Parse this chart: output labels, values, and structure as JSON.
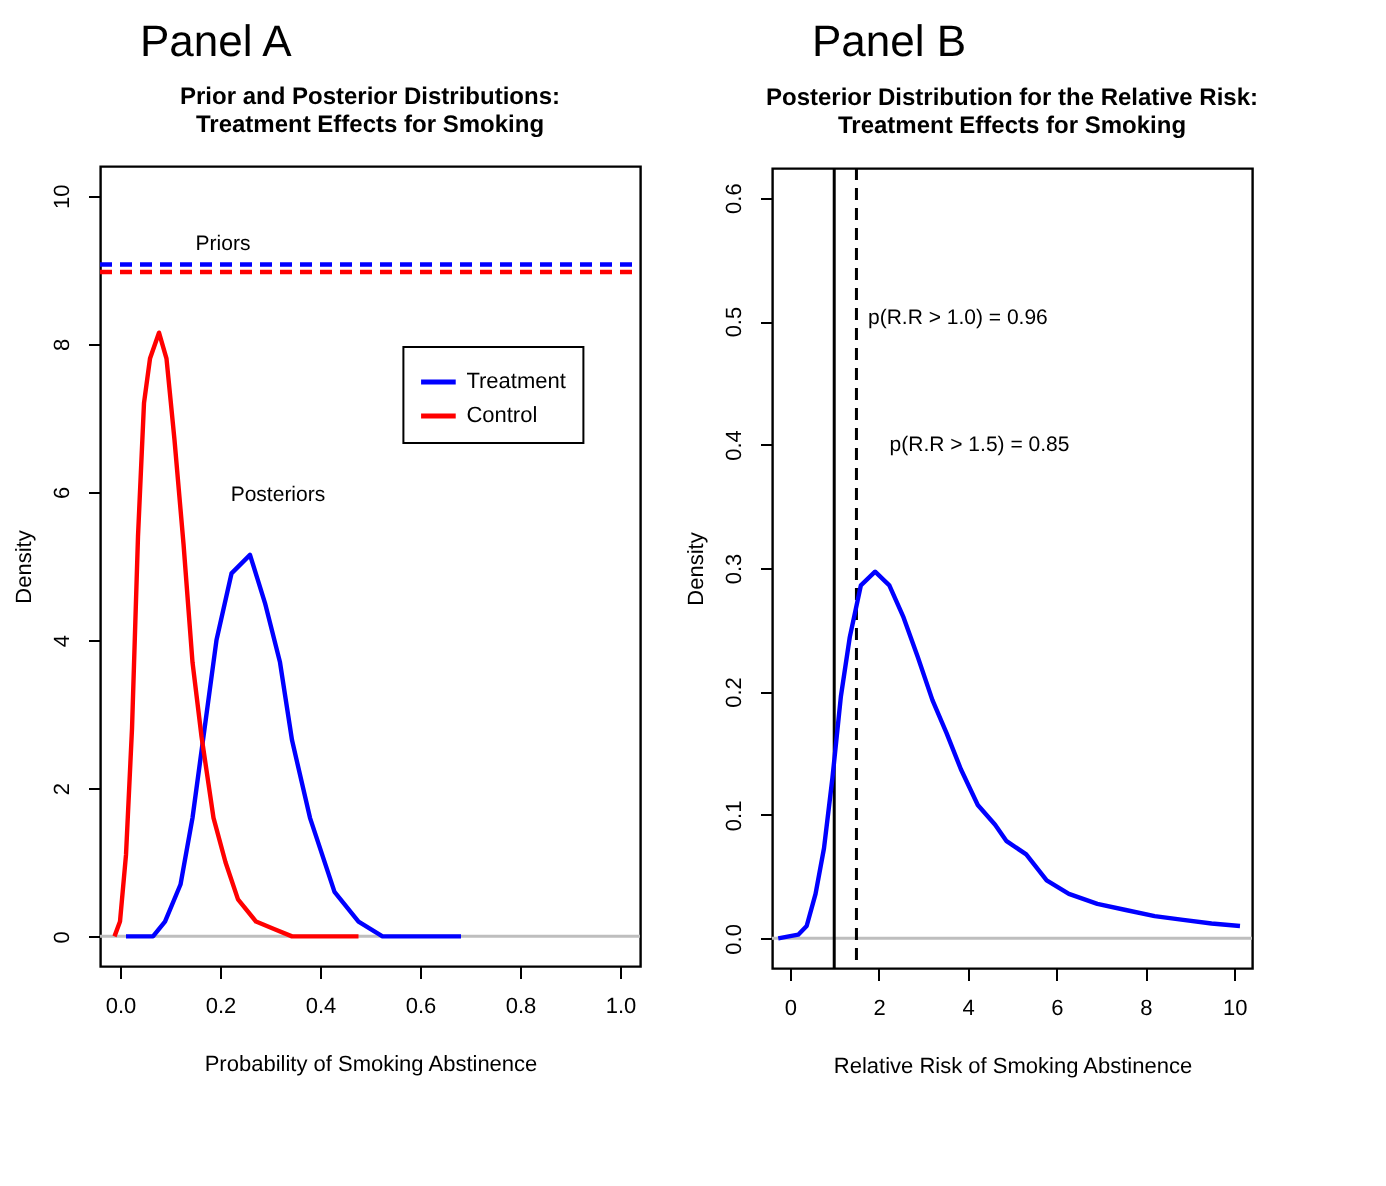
{
  "chart_data": [
    {
      "type": "line",
      "title": "Prior and Posterior Distributions:\nTreatment Effects for Smoking",
      "xlabel": "Probability of Smoking Abstinence",
      "ylabel": "Density",
      "annotations": [
        "Panel A",
        "Priors",
        "Posteriors"
      ],
      "xlim": [
        -0.04,
        1.04
      ],
      "ylim": [
        -0.4,
        10.4
      ],
      "xticks": [
        {
          "value": 0,
          "label": "0.0"
        },
        0.2,
        0.4,
        0.6,
        0.8,
        {
          "value": 1,
          "label": "1.0"
        }
      ],
      "yticks": [
        0,
        2,
        4,
        6,
        8,
        10
      ],
      "legend": "top right",
      "grid": false,
      "ref_lines": [
        {
          "axis": "y",
          "value": 0,
          "color": "#bebebe"
        }
      ],
      "series": [
        {
          "color": "#0000ff",
          "line_style": "dashed",
          "x": [
            -0.04,
            1.04
          ],
          "values": [
            9.07,
            9.07
          ]
        },
        {
          "color": "#ff0000",
          "line_style": "dashed",
          "x": [
            -0.04,
            1.04
          ],
          "values": [
            8.97,
            8.97
          ]
        },
        {
          "name": "Treatment",
          "color": "#0000ff",
          "line_style": "solid",
          "x": [
            0.012,
            0.066,
            0.09,
            0.121,
            0.145,
            0.169,
            0.193,
            0.223,
            0.26,
            0.29,
            0.32,
            0.344,
            0.38,
            0.429,
            0.477,
            0.525,
            0.574,
            0.682
          ],
          "values": [
            0,
            0,
            0.2,
            0.7,
            1.6,
            2.8,
            4.0,
            4.9,
            5.15,
            4.5,
            3.7,
            2.65,
            1.6,
            0.6,
            0.2,
            0,
            0,
            0
          ]
        },
        {
          "name": "Control",
          "color": "#ff0000",
          "line_style": "solid",
          "x": [
            -0.011,
            0,
            0.012,
            0.024,
            0.036,
            0.048,
            0.06,
            0.078,
            0.093,
            0.109,
            0.127,
            0.145,
            0.163,
            0.187,
            0.211,
            0.236,
            0.272,
            0.308,
            0.344,
            0.477
          ],
          "values": [
            0,
            0.2,
            1.1,
            2.8,
            5.4,
            7.2,
            7.8,
            8.15,
            7.8,
            6.7,
            5.3,
            3.7,
            2.7,
            1.6,
            1.0,
            0.5,
            0.2,
            0.1,
            0,
            0
          ]
        }
      ]
    },
    {
      "type": "line",
      "title": "Posterior Distribution for the Relative Risk:\nTreatment Effects for Smoking",
      "xlabel": "Relative Risk of Smoking Abstinence",
      "ylabel": "Density",
      "annotations": [
        "Panel B",
        "p(R.R > 1.0) = 0.96",
        "p(R.R > 1.5) = 0.85"
      ],
      "xlim": [
        -0.4,
        10.4
      ],
      "ylim": [
        -0.024,
        0.624
      ],
      "xticks": [
        0,
        2,
        4,
        6,
        8,
        10
      ],
      "yticks": [
        {
          "value": 0,
          "label": "0.0"
        },
        0.1,
        0.2,
        0.3,
        0.4,
        0.5,
        0.6
      ],
      "grid": false,
      "ref_lines": [
        {
          "axis": "y",
          "value": 0,
          "color": "#bebebe"
        },
        {
          "axis": "x",
          "value": 1,
          "color": "#000000",
          "line_style": "solid"
        },
        {
          "axis": "x",
          "value": 1.5,
          "color": "#000000",
          "line_style": "dashed"
        }
      ],
      "series": [
        {
          "color": "#0000ff",
          "line_style": "solid",
          "x": [
            -0.26,
            0.19,
            0.38,
            0.58,
            0.77,
            0.96,
            1.15,
            1.35,
            1.6,
            1.92,
            2.24,
            2.56,
            2.88,
            3.21,
            3.53,
            3.85,
            4.23,
            4.62,
            4.87,
            5.32,
            5.78,
            6.28,
            6.92,
            7.56,
            8.21,
            8.85,
            9.49,
            10.13
          ],
          "values": [
            0,
            0.003,
            0.01,
            0.036,
            0.073,
            0.13,
            0.196,
            0.244,
            0.286,
            0.297,
            0.286,
            0.26,
            0.228,
            0.193,
            0.166,
            0.137,
            0.108,
            0.092,
            0.079,
            0.068,
            0.047,
            0.036,
            0.028,
            0.023,
            0.018,
            0.015,
            0.012,
            0.01
          ]
        }
      ]
    }
  ]
}
